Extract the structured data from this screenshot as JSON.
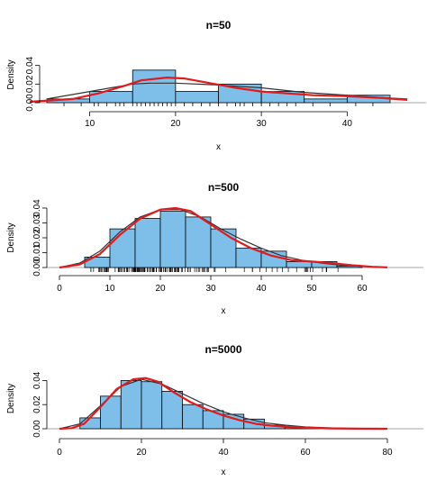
{
  "chart_data": [
    {
      "type": "histogram",
      "title": "n=50",
      "xlabel": "x",
      "ylabel": "Density",
      "xlim": [
        5,
        45
      ],
      "ylim": [
        0,
        0.06
      ],
      "xticks": [
        10,
        20,
        30,
        40
      ],
      "xtick_labels": [
        "10",
        "20",
        "30",
        "40"
      ],
      "yticks": [
        0.0,
        0.02,
        0.04
      ],
      "ytick_labels": [
        "0.00",
        "0.02",
        "0.04"
      ],
      "bins": [
        5,
        10,
        15,
        20,
        25,
        30,
        35,
        40,
        45
      ],
      "values": [
        0.004,
        0.012,
        0.035,
        0.012,
        0.02,
        0.012,
        0.004,
        0.008
      ],
      "bar_color": "#7ebfea",
      "curves": [
        {
          "role": "true-density",
          "color": "#333333",
          "x": [
            5,
            10,
            15,
            17,
            20,
            25,
            30,
            35,
            40,
            45,
            47
          ],
          "y": [
            0.004,
            0.012,
            0.02,
            0.021,
            0.021,
            0.019,
            0.016,
            0.011,
            0.008,
            0.005,
            0.004
          ]
        },
        {
          "role": "kernel-density",
          "color": "#e31a1c",
          "x": [
            3,
            8,
            11,
            14,
            16,
            19,
            21,
            24,
            27,
            30,
            33,
            36,
            40,
            44,
            47
          ],
          "y": [
            0.001,
            0.004,
            0.01,
            0.018,
            0.024,
            0.027,
            0.026,
            0.021,
            0.016,
            0.012,
            0.01,
            0.008,
            0.007,
            0.005,
            0.003
          ]
        }
      ],
      "rug": [
        7,
        9,
        10.5,
        11,
        12,
        13,
        13.5,
        14,
        15,
        15.5,
        16,
        16.5,
        17,
        17.5,
        18,
        18.5,
        19,
        19.5,
        20,
        21,
        22,
        23,
        24,
        25,
        26,
        27,
        27.5,
        28,
        29,
        30,
        31,
        32,
        33,
        34,
        36,
        38,
        41,
        43
      ]
    },
    {
      "type": "histogram",
      "title": "n=500",
      "xlabel": "x",
      "ylabel": "Density",
      "xlim": [
        0,
        65
      ],
      "ylim": [
        0,
        0.04
      ],
      "xticks": [
        0,
        10,
        20,
        30,
        40,
        50,
        60
      ],
      "xtick_labels": [
        "0",
        "10",
        "20",
        "30",
        "40",
        "50",
        "60"
      ],
      "yticks": [
        0.0,
        0.01,
        0.02,
        0.03,
        0.04
      ],
      "ytick_labels": [
        "0.00",
        "0.01",
        "0.02",
        "0.03",
        "0.04"
      ],
      "bins": [
        5,
        10,
        15,
        20,
        25,
        30,
        35,
        40,
        45,
        50,
        55,
        60
      ],
      "values": [
        0.007,
        0.026,
        0.033,
        0.038,
        0.034,
        0.026,
        0.013,
        0.011,
        0.004,
        0.004,
        0.001
      ],
      "bar_color": "#7ebfea",
      "curves": [
        {
          "role": "true-density",
          "color": "#333333",
          "x": [
            0,
            4,
            8,
            12,
            16,
            20,
            24,
            28,
            32,
            36,
            40,
            44,
            48,
            52,
            56,
            60,
            65
          ],
          "y": [
            0.0,
            0.003,
            0.011,
            0.024,
            0.034,
            0.039,
            0.039,
            0.034,
            0.026,
            0.019,
            0.013,
            0.008,
            0.005,
            0.003,
            0.0015,
            0.0007,
            0.0002
          ]
        },
        {
          "role": "kernel-density",
          "color": "#e31a1c",
          "x": [
            0,
            4,
            8,
            12,
            16,
            20,
            23,
            26,
            30,
            34,
            38,
            42,
            46,
            50,
            54,
            58,
            62,
            65
          ],
          "y": [
            0.0,
            0.002,
            0.009,
            0.022,
            0.033,
            0.039,
            0.04,
            0.038,
            0.029,
            0.02,
            0.013,
            0.008,
            0.005,
            0.004,
            0.003,
            0.0015,
            0.0005,
            0.0001
          ]
        }
      ],
      "rug_range": [
        4,
        58
      ]
    },
    {
      "type": "histogram",
      "title": "n=5000",
      "xlabel": "x",
      "ylabel": "Density",
      "xlim": [
        0,
        80
      ],
      "ylim": [
        0,
        0.05
      ],
      "xticks": [
        0,
        20,
        40,
        60,
        80
      ],
      "xtick_labels": [
        "0",
        "20",
        "40",
        "60",
        "80"
      ],
      "yticks": [
        0.0,
        0.02,
        0.04
      ],
      "ytick_labels": [
        "0.00",
        "0.02",
        "0.04"
      ],
      "bins": [
        5,
        10,
        15,
        20,
        25,
        30,
        35,
        40,
        45,
        50,
        55,
        60,
        65
      ],
      "values": [
        0.009,
        0.027,
        0.04,
        0.039,
        0.031,
        0.02,
        0.015,
        0.012,
        0.008,
        0.003,
        0.001,
        0.0005
      ],
      "bar_color": "#7ebfea",
      "curves": [
        {
          "role": "true-density",
          "color": "#333333",
          "x": [
            0,
            5,
            10,
            15,
            20,
            25,
            30,
            35,
            40,
            45,
            50,
            55,
            60,
            65,
            70,
            80
          ],
          "y": [
            0.0,
            0.004,
            0.019,
            0.035,
            0.041,
            0.037,
            0.029,
            0.021,
            0.014,
            0.009,
            0.005,
            0.003,
            0.0015,
            0.0008,
            0.0004,
            0.0001
          ]
        },
        {
          "role": "kernel-density",
          "color": "#e31a1c",
          "x": [
            0,
            3,
            6,
            10,
            14,
            18,
            21,
            24,
            28,
            32,
            36,
            40,
            44,
            48,
            52,
            56,
            60,
            66,
            72,
            80
          ],
          "y": [
            0.0,
            0.0005,
            0.004,
            0.018,
            0.033,
            0.041,
            0.042,
            0.039,
            0.03,
            0.022,
            0.016,
            0.011,
            0.007,
            0.004,
            0.0025,
            0.0015,
            0.0008,
            0.0003,
            0.0001,
            0.0
          ]
        }
      ]
    }
  ]
}
